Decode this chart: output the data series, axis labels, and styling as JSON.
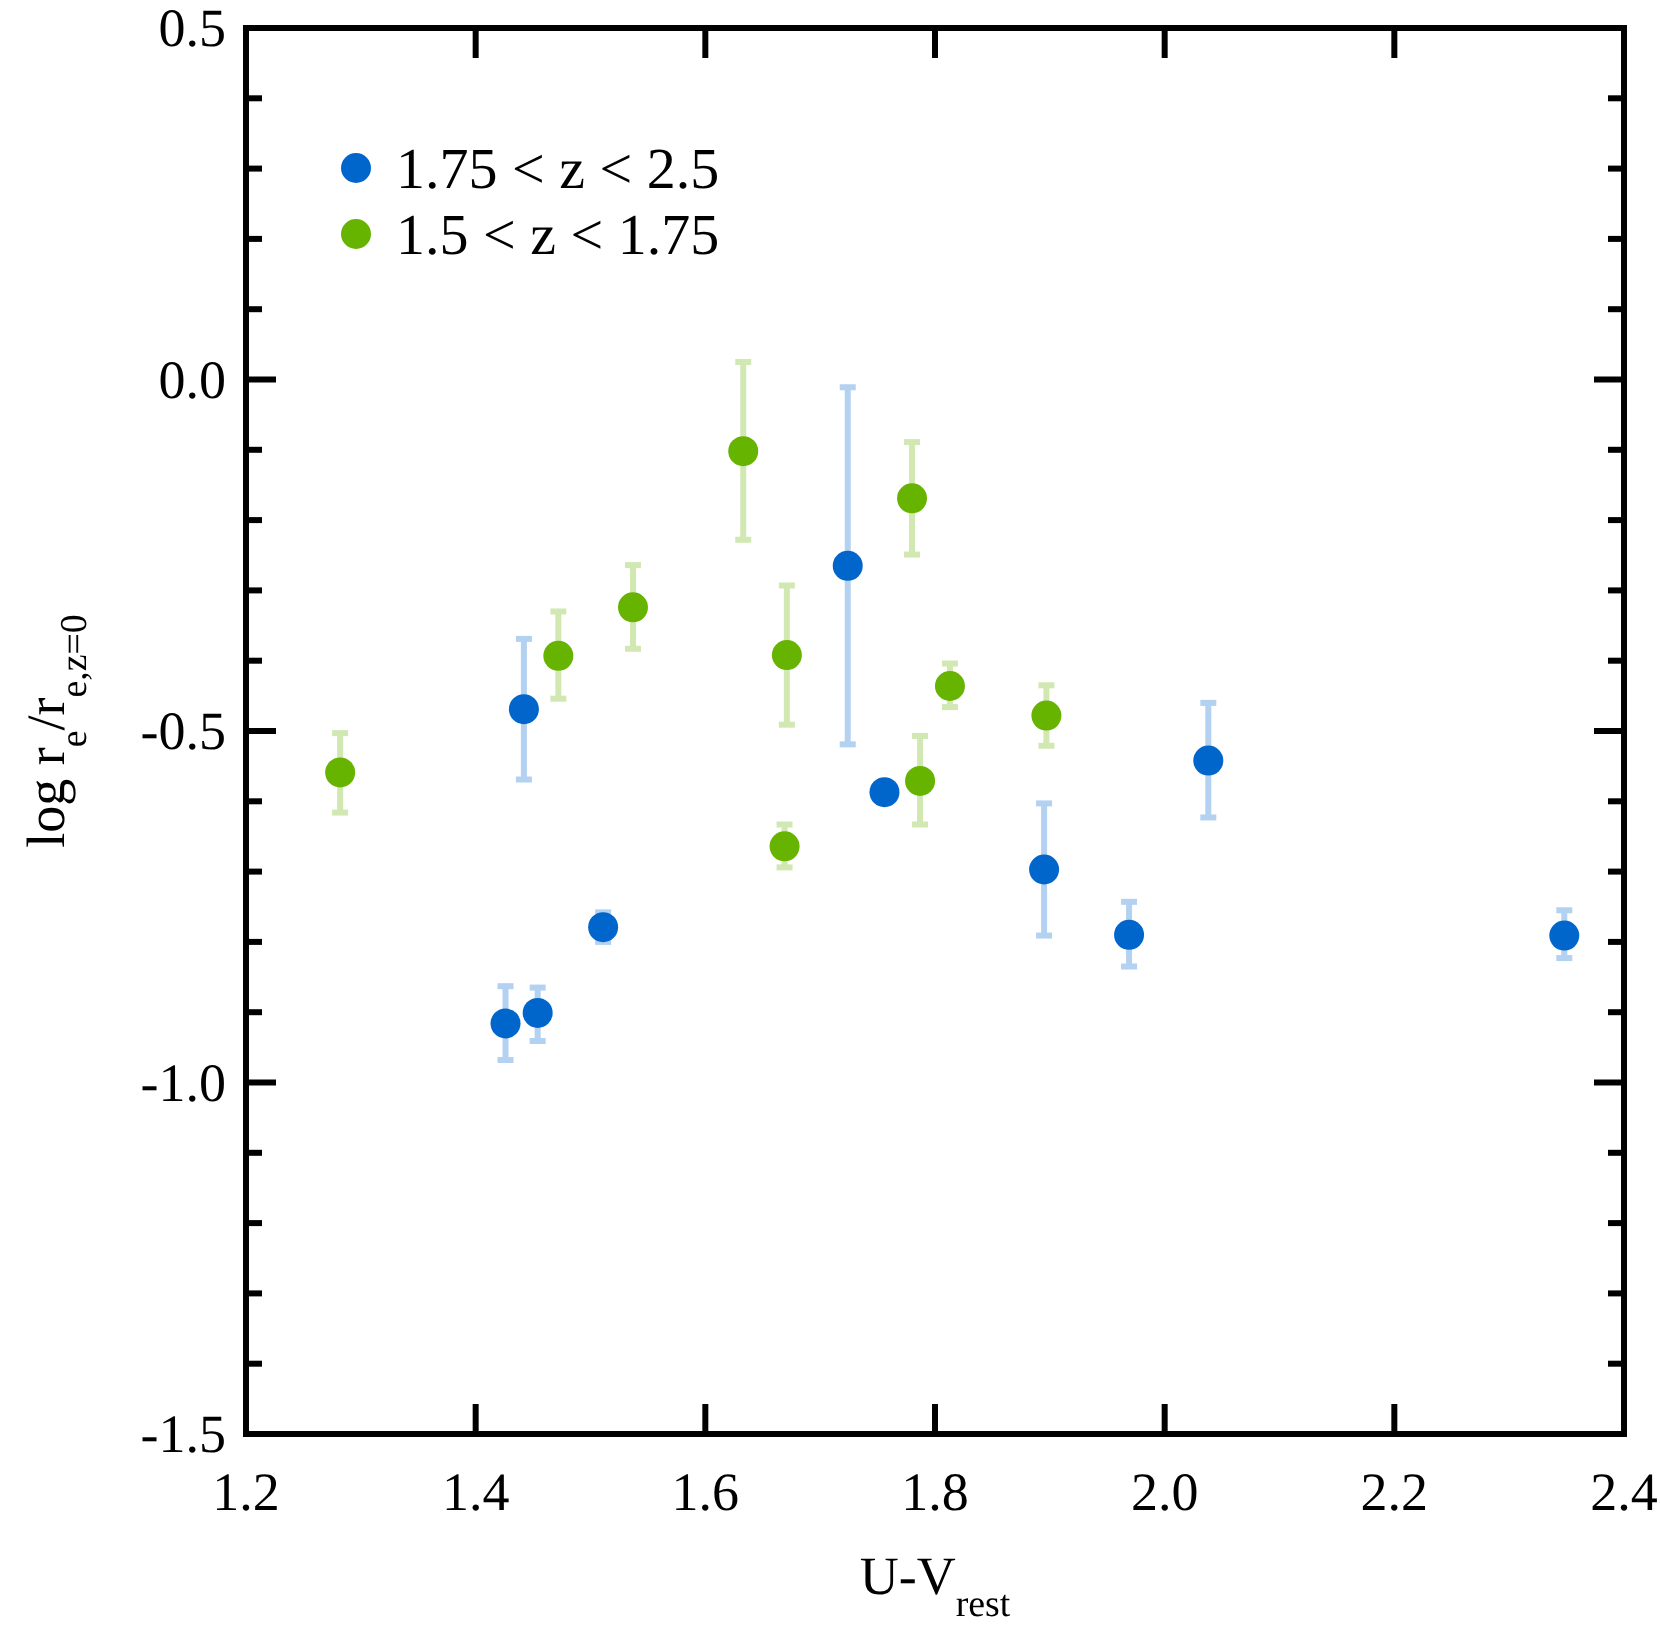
{
  "chart_data": {
    "type": "scatter",
    "xlabel": "U-V$_{rest}$",
    "ylabel": "log r$_{e}$/r$_{e,z=0}$",
    "xlim": [
      1.2,
      2.4
    ],
    "xticks": [
      1.2,
      1.4,
      1.6,
      1.8,
      {
        "value": 2,
        "label": "2.0"
      },
      2.2,
      2.4
    ],
    "ylim": [
      -1.5,
      0.5
    ],
    "yticks": [
      -1.5,
      {
        "value": -1.4,
        "label": null
      },
      {
        "value": -1.3,
        "label": null
      },
      {
        "value": -1.2,
        "label": null
      },
      {
        "value": -1.1,
        "label": null
      },
      {
        "value": -1.0,
        "label": "-1.0"
      },
      {
        "value": -0.9,
        "label": null
      },
      {
        "value": -0.8,
        "label": null
      },
      {
        "value": -0.7,
        "label": null
      },
      {
        "value": -0.6,
        "label": null
      },
      -0.5,
      {
        "value": -0.4,
        "label": null
      },
      {
        "value": -0.3,
        "label": null
      },
      {
        "value": -0.2,
        "label": null
      },
      {
        "value": -0.1,
        "label": null
      },
      {
        "value": 0,
        "label": "0.0"
      },
      {
        "value": 0.1,
        "label": null
      },
      {
        "value": 0.2,
        "label": null
      },
      {
        "value": 0.3,
        "label": null
      },
      {
        "value": 0.4,
        "label": null
      },
      0.5
    ],
    "grid": false,
    "legend": "top left",
    "marker": "circle",
    "series": [
      {
        "name": "1.75 < z < 2.5",
        "color": "#0066cc",
        "x": [
          1.442,
          1.511,
          1.426,
          1.454,
          1.724,
          1.756,
          1.895,
          1.969,
          2.038,
          2.348
        ],
        "values": [
          -0.469,
          -0.779,
          -0.916,
          -0.901,
          -0.265,
          -0.587,
          -0.697,
          -0.79,
          -0.542,
          -0.791
        ],
        "errors": [
          [
            -0.569,
            -0.369
          ],
          [
            -0.8,
            -0.758
          ],
          [
            -0.968,
            -0.863
          ],
          [
            -0.941,
            -0.865
          ],
          [
            -0.519,
            -0.011
          ],
          null,
          [
            -0.791,
            -0.603
          ],
          [
            -0.835,
            -0.743
          ],
          [
            -0.623,
            -0.46
          ],
          [
            -0.823,
            -0.755
          ]
        ]
      },
      {
        "name": "1.5 < z < 1.75",
        "color": "#66b300",
        "x": [
          1.282,
          1.472,
          1.537,
          1.633,
          1.671,
          1.669,
          1.78,
          1.813,
          1.787,
          1.897
        ],
        "values": [
          -0.559,
          -0.393,
          -0.324,
          -0.102,
          -0.392,
          -0.664,
          -0.169,
          -0.436,
          -0.571,
          -0.478
        ],
        "errors": [
          [
            -0.616,
            -0.503
          ],
          [
            -0.454,
            -0.33
          ],
          [
            -0.383,
            -0.264
          ],
          [
            -0.228,
            0.025
          ],
          [
            -0.491,
            -0.293
          ],
          [
            -0.694,
            -0.633
          ],
          [
            -0.249,
            -0.089
          ],
          [
            -0.466,
            -0.404
          ],
          [
            -0.633,
            -0.507
          ],
          [
            -0.521,
            -0.435
          ]
        ]
      }
    ]
  }
}
